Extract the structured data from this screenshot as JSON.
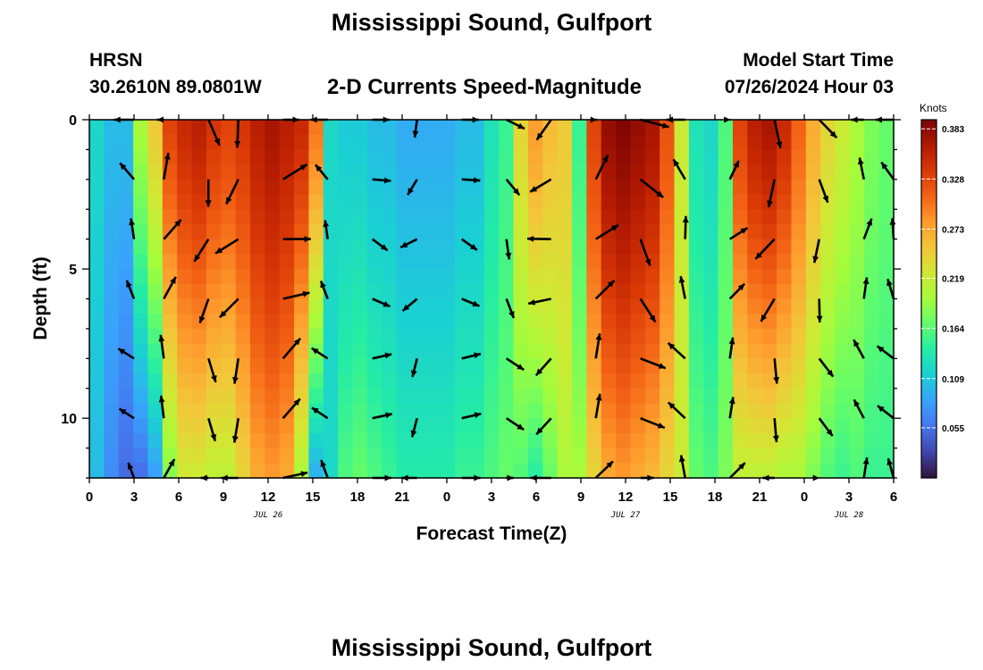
{
  "header": {
    "title": "Mississippi Sound, Gulfport",
    "station": "HRSN",
    "location": "30.2610N  89.0801W",
    "subtitle": "2-D Currents Speed-Magnitude",
    "model_start_label": "Model Start Time",
    "model_start_value": "07/26/2024 Hour 03"
  },
  "footer": {
    "repeated_title": "Mississippi Sound, Gulfport"
  },
  "chart_data": {
    "type": "heatmap",
    "title": "2-D Currents Speed-Magnitude",
    "xlabel": "Forecast Time(Z)",
    "ylabel": "Depth (ft)",
    "x_tick_labels": [
      "0",
      "3",
      "6",
      "9",
      "12",
      "15",
      "18",
      "21",
      "0",
      "3",
      "6",
      "9",
      "12",
      "15",
      "18",
      "21",
      "0",
      "3",
      "6"
    ],
    "x_range_hours": [
      0,
      54
    ],
    "date_labels": [
      {
        "label": "JUL 26",
        "hour": 12
      },
      {
        "label": "JUL 27",
        "hour": 36
      },
      {
        "label": "JUL 28",
        "hour": 51
      }
    ],
    "y_ticks": [
      0,
      5,
      10
    ],
    "ylim": [
      0,
      12
    ],
    "y_inverted": true,
    "colorbar": {
      "label": "Knots",
      "range": [
        0.0,
        0.393
      ],
      "tick_labels": [
        "0.383",
        "0.328",
        "0.273",
        "0.219",
        "0.164",
        "0.109",
        "0.055"
      ],
      "tick_values": [
        0.383,
        0.328,
        0.273,
        0.219,
        0.164,
        0.109,
        0.055
      ],
      "colors": [
        "#30123b",
        "#4145ab",
        "#4675ed",
        "#39a2fc",
        "#1bcfd4",
        "#24eca6",
        "#61fc6c",
        "#a4fc3b",
        "#d1e834",
        "#f3c63a",
        "#fe9b2d",
        "#f36315",
        "#d93806",
        "#b11901",
        "#7a0403"
      ]
    },
    "hours": [
      0,
      1,
      2,
      3,
      4,
      5,
      6,
      7,
      8,
      9,
      10,
      11,
      12,
      13,
      14,
      15,
      16,
      17,
      18,
      19,
      20,
      21,
      22,
      23,
      24,
      25,
      26,
      27,
      28,
      29,
      30,
      31,
      32,
      33,
      34,
      35,
      36,
      37,
      38,
      39,
      40,
      41,
      42,
      43,
      44,
      45,
      46,
      47,
      48,
      49,
      50,
      51,
      52,
      53,
      54
    ],
    "surface_speed_profile": [
      0.12,
      0.1,
      0.1,
      0.2,
      0.25,
      0.33,
      0.35,
      0.36,
      0.34,
      0.33,
      0.34,
      0.36,
      0.37,
      0.36,
      0.35,
      0.3,
      0.12,
      0.11,
      0.11,
      0.1,
      0.1,
      0.09,
      0.09,
      0.09,
      0.09,
      0.1,
      0.1,
      0.13,
      0.15,
      0.24,
      0.28,
      0.26,
      0.25,
      0.15,
      0.33,
      0.38,
      0.39,
      0.38,
      0.37,
      0.32,
      0.22,
      0.13,
      0.12,
      0.16,
      0.33,
      0.36,
      0.37,
      0.35,
      0.31,
      0.27,
      0.24,
      0.22,
      0.2,
      0.18,
      0.17
    ],
    "bottom_speed_profile": [
      0.1,
      0.07,
      0.05,
      0.05,
      0.08,
      0.18,
      0.22,
      0.22,
      0.21,
      0.21,
      0.24,
      0.27,
      0.28,
      0.27,
      0.2,
      0.09,
      0.12,
      0.16,
      0.17,
      0.16,
      0.15,
      0.14,
      0.14,
      0.14,
      0.14,
      0.15,
      0.15,
      0.16,
      0.17,
      0.16,
      0.14,
      0.17,
      0.2,
      0.2,
      0.24,
      0.27,
      0.28,
      0.27,
      0.26,
      0.24,
      0.22,
      0.17,
      0.16,
      0.18,
      0.21,
      0.21,
      0.21,
      0.2,
      0.2,
      0.18,
      0.16,
      0.15,
      0.16,
      0.15,
      0.15
    ],
    "vector_hours": [
      3,
      5,
      8,
      10,
      13,
      16,
      19,
      22,
      25,
      28,
      31,
      34,
      37,
      40,
      43,
      46,
      49,
      52,
      54
    ],
    "vector_depths_ft": [
      0,
      2,
      4,
      6,
      8,
      10,
      12
    ]
  }
}
